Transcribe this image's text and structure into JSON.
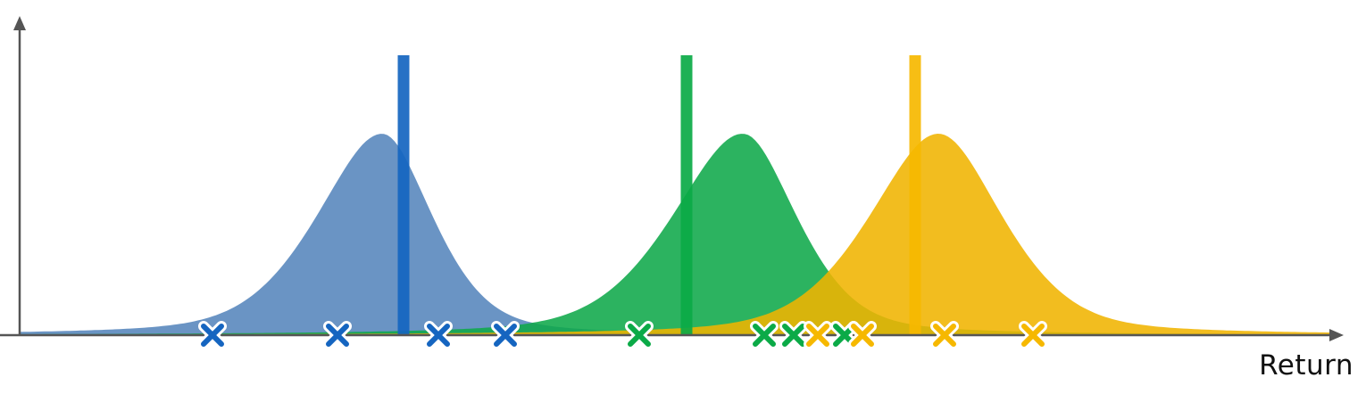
{
  "axis": {
    "x_label": "Return"
  },
  "colors": {
    "axis": "#555555",
    "blue": "#5585BC",
    "blue_line": "#1565C0",
    "green": "#0FA84A",
    "green_line": "#0BAA47",
    "yellow": "#F0B400",
    "yellow_line": "#F6B800",
    "marker_outline": "#ffffff"
  },
  "distributions": [
    {
      "id": "blue",
      "name": "",
      "color_key": "blue",
      "line_color_key": "blue_line",
      "peak_return": 428,
      "mean_return": 452,
      "spread_left": 78,
      "spread_right": 60,
      "height_scale": 1.0,
      "samples": [
        238,
        378,
        491,
        566
      ]
    },
    {
      "id": "green",
      "name": "",
      "color_key": "green",
      "line_color_key": "green_line",
      "peak_return": 832,
      "mean_return": 769,
      "spread_left": 84,
      "spread_right": 64,
      "height_scale": 1.0,
      "samples": [
        716,
        856,
        889,
        946
      ]
    },
    {
      "id": "yellow",
      "name": "",
      "color_key": "yellow",
      "line_color_key": "yellow_line",
      "peak_return": 1051,
      "mean_return": 1025,
      "spread_left": 82,
      "spread_right": 76,
      "height_scale": 1.0,
      "samples": [
        916,
        966,
        1058,
        1157
      ]
    }
  ]
}
